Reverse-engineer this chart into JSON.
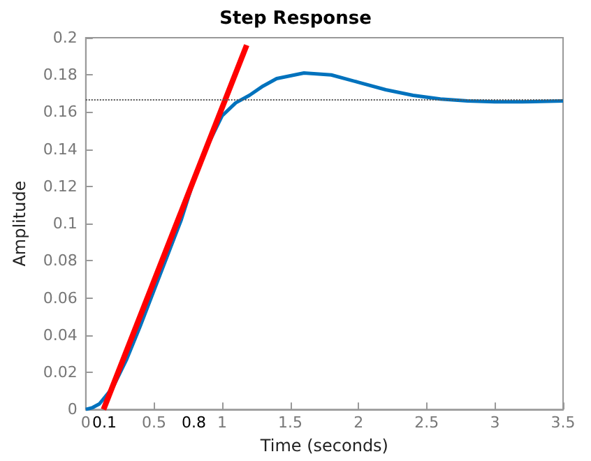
{
  "chart_data": {
    "type": "line",
    "title": "Step Response",
    "xlabel": "Time (seconds)",
    "ylabel": "Amplitude",
    "series": [
      {
        "color": "#0072bd",
        "x": [
          0,
          0.05,
          0.1,
          0.2,
          0.3,
          0.4,
          0.5,
          0.6,
          0.7,
          0.8,
          0.9,
          1.0,
          1.1,
          1.2,
          1.3,
          1.4,
          1.6,
          1.8,
          2.0,
          2.2,
          2.4,
          2.6,
          2.8,
          3.0,
          3.2,
          3.5
        ],
        "values": [
          0,
          0.001,
          0.003,
          0.012,
          0.027,
          0.045,
          0.064,
          0.083,
          0.102,
          0.125,
          0.143,
          0.158,
          0.165,
          0.169,
          0.174,
          0.178,
          0.181,
          0.18,
          0.176,
          0.172,
          0.169,
          0.167,
          0.166,
          0.1655,
          0.1655,
          0.166
        ]
      },
      {
        "color": "#ff0000",
        "x": [
          0.13,
          1.18
        ],
        "values": [
          0,
          0.196
        ]
      }
    ],
    "xlim": [
      0,
      3.5
    ],
    "xticks": [
      0,
      0.5,
      1,
      1.5,
      2,
      2.5,
      3,
      3.5
    ],
    "ylim": [
      0,
      0.2
    ],
    "yticks": [
      0,
      0.02,
      0.04,
      0.06,
      0.08,
      0.1,
      0.12,
      0.14,
      0.16,
      0.18,
      0.2
    ],
    "ref_lines": [
      {
        "axis": "y",
        "value": 0.1667,
        "color": "#555555",
        "line_style": "dotted"
      }
    ],
    "annotations": [
      "0.1",
      "0.8"
    ],
    "grid": false,
    "marker": "none",
    "line_style": "solid"
  }
}
